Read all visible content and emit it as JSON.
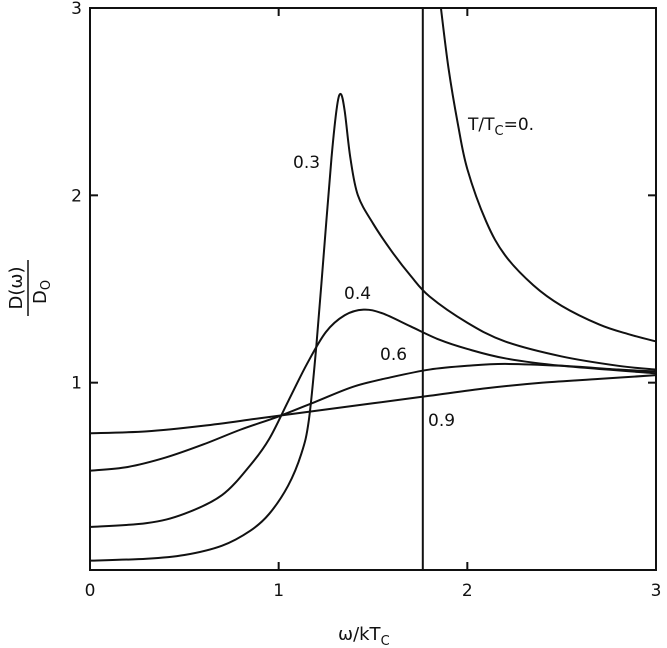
{
  "chart_data": {
    "type": "line",
    "xlabel_main": "ω/kT",
    "xlabel_sub": "C",
    "ylabel_num": "D(ω)",
    "ylabel_den_main": "D",
    "ylabel_den_sub": "O",
    "xlim": [
      0,
      3
    ],
    "ylim": [
      0,
      3
    ],
    "xticks": [
      0,
      1,
      2,
      3
    ],
    "yticks": [
      1,
      2,
      3
    ],
    "xtick_labels": [
      "0",
      "1",
      "2",
      "3"
    ],
    "ytick_labels": [
      "1",
      "2",
      "3"
    ],
    "grid": false,
    "gap_edge": 1.764,
    "series": [
      {
        "name": "T/TC=0.",
        "label_main": "T/T",
        "label_sub": "C",
        "label_tail": "=0.",
        "points": [
          [
            1.764,
            3.0
          ],
          [
            1.764,
            0.0
          ]
        ]
      },
      {
        "name": "T/TC=0. (above gap)",
        "points": [
          [
            1.86,
            3.0
          ],
          [
            1.9,
            2.68
          ],
          [
            1.95,
            2.38
          ],
          [
            2.0,
            2.14
          ],
          [
            2.1,
            1.86
          ],
          [
            2.2,
            1.68
          ],
          [
            2.35,
            1.52
          ],
          [
            2.5,
            1.41
          ],
          [
            2.7,
            1.31
          ],
          [
            2.85,
            1.26
          ],
          [
            3.0,
            1.22
          ]
        ]
      },
      {
        "name": "0.3",
        "label": "0.3",
        "points": [
          [
            0,
            0.05
          ],
          [
            0.3,
            0.06
          ],
          [
            0.5,
            0.08
          ],
          [
            0.7,
            0.13
          ],
          [
            0.85,
            0.21
          ],
          [
            0.95,
            0.3
          ],
          [
            1.05,
            0.45
          ],
          [
            1.12,
            0.62
          ],
          [
            1.16,
            0.8
          ],
          [
            1.2,
            1.2
          ],
          [
            1.24,
            1.7
          ],
          [
            1.28,
            2.2
          ],
          [
            1.31,
            2.48
          ],
          [
            1.33,
            2.54
          ],
          [
            1.35,
            2.45
          ],
          [
            1.38,
            2.2
          ],
          [
            1.42,
            2.0
          ],
          [
            1.5,
            1.85
          ],
          [
            1.6,
            1.7
          ],
          [
            1.7,
            1.57
          ],
          [
            1.8,
            1.46
          ],
          [
            2.0,
            1.32
          ],
          [
            2.2,
            1.22
          ],
          [
            2.5,
            1.14
          ],
          [
            2.8,
            1.09
          ],
          [
            3.0,
            1.07
          ]
        ]
      },
      {
        "name": "0.4",
        "label": "0.4",
        "points": [
          [
            0,
            0.23
          ],
          [
            0.3,
            0.25
          ],
          [
            0.5,
            0.3
          ],
          [
            0.7,
            0.4
          ],
          [
            0.85,
            0.56
          ],
          [
            0.95,
            0.7
          ],
          [
            1.05,
            0.9
          ],
          [
            1.15,
            1.1
          ],
          [
            1.25,
            1.27
          ],
          [
            1.35,
            1.36
          ],
          [
            1.45,
            1.39
          ],
          [
            1.55,
            1.37
          ],
          [
            1.7,
            1.3
          ],
          [
            1.85,
            1.23
          ],
          [
            2.0,
            1.18
          ],
          [
            2.2,
            1.13
          ],
          [
            2.5,
            1.09
          ],
          [
            3.0,
            1.05
          ]
        ]
      },
      {
        "name": "0.6",
        "label": "0.6",
        "points": [
          [
            0,
            0.53
          ],
          [
            0.2,
            0.55
          ],
          [
            0.4,
            0.6
          ],
          [
            0.6,
            0.67
          ],
          [
            0.8,
            0.75
          ],
          [
            1.0,
            0.82
          ],
          [
            1.2,
            0.9
          ],
          [
            1.4,
            0.98
          ],
          [
            1.6,
            1.03
          ],
          [
            1.8,
            1.07
          ],
          [
            2.0,
            1.09
          ],
          [
            2.2,
            1.1
          ],
          [
            2.5,
            1.09
          ],
          [
            2.8,
            1.07
          ],
          [
            3.0,
            1.06
          ]
        ]
      },
      {
        "name": "0.9",
        "label": "0.9",
        "points": [
          [
            0,
            0.73
          ],
          [
            0.3,
            0.74
          ],
          [
            0.6,
            0.77
          ],
          [
            0.9,
            0.81
          ],
          [
            1.2,
            0.85
          ],
          [
            1.5,
            0.89
          ],
          [
            1.8,
            0.93
          ],
          [
            2.1,
            0.97
          ],
          [
            2.4,
            1.0
          ],
          [
            2.7,
            1.02
          ],
          [
            3.0,
            1.04
          ]
        ]
      }
    ]
  }
}
